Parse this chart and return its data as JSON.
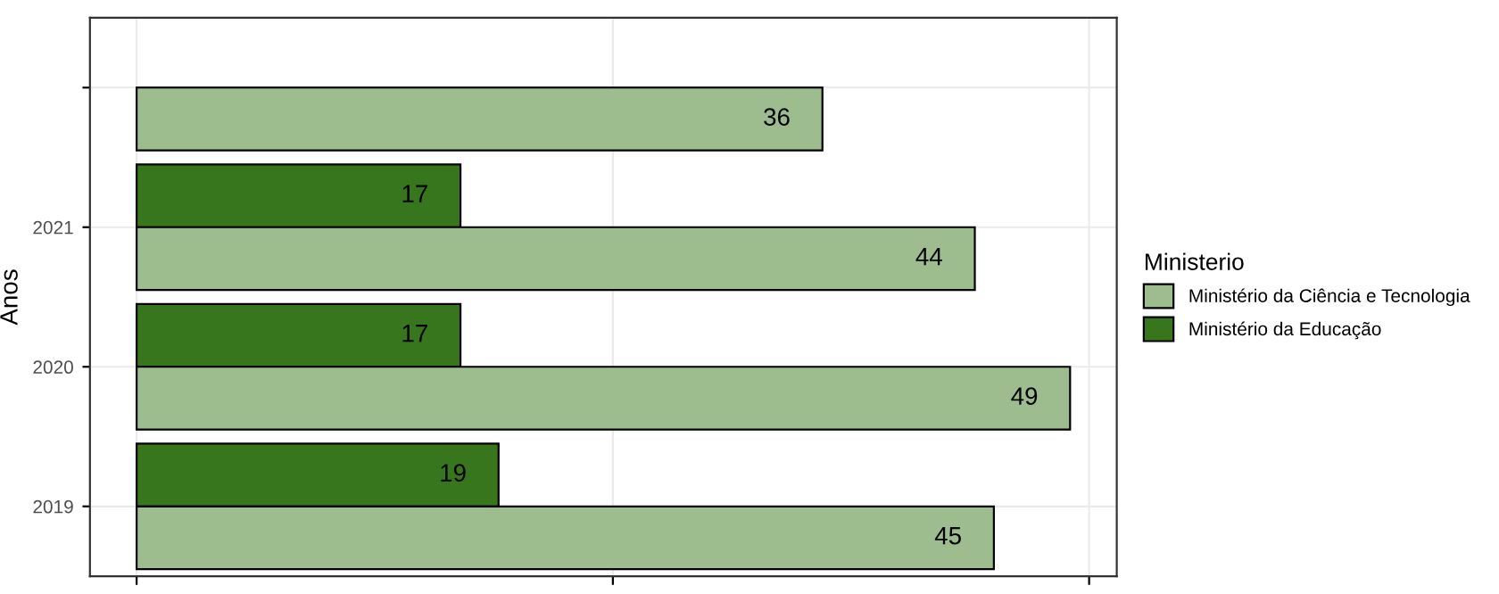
{
  "chart_data": {
    "type": "bar",
    "orientation": "horizontal",
    "ylabel": "Anos",
    "legend_title": "Ministerio",
    "legend": "right",
    "grid": true,
    "data_labels": true,
    "tick_labels": "y",
    "categories": [
      null,
      "2021",
      "2020",
      "2019"
    ],
    "series": [
      {
        "name": "Ministério da Educação",
        "color": "#38761d",
        "values": [
          null,
          17,
          17,
          19
        ]
      },
      {
        "name": "Ministério da Ciência e Tecnologia",
        "color": "#9dbd8f",
        "values": [
          36,
          44,
          49,
          45
        ]
      }
    ],
    "xlim": [
      -2.45,
      51.45
    ],
    "xticks": [
      {
        "value": 0,
        "label": null
      },
      {
        "value": 25,
        "label": null
      },
      {
        "value": 50,
        "label": null
      }
    ]
  }
}
